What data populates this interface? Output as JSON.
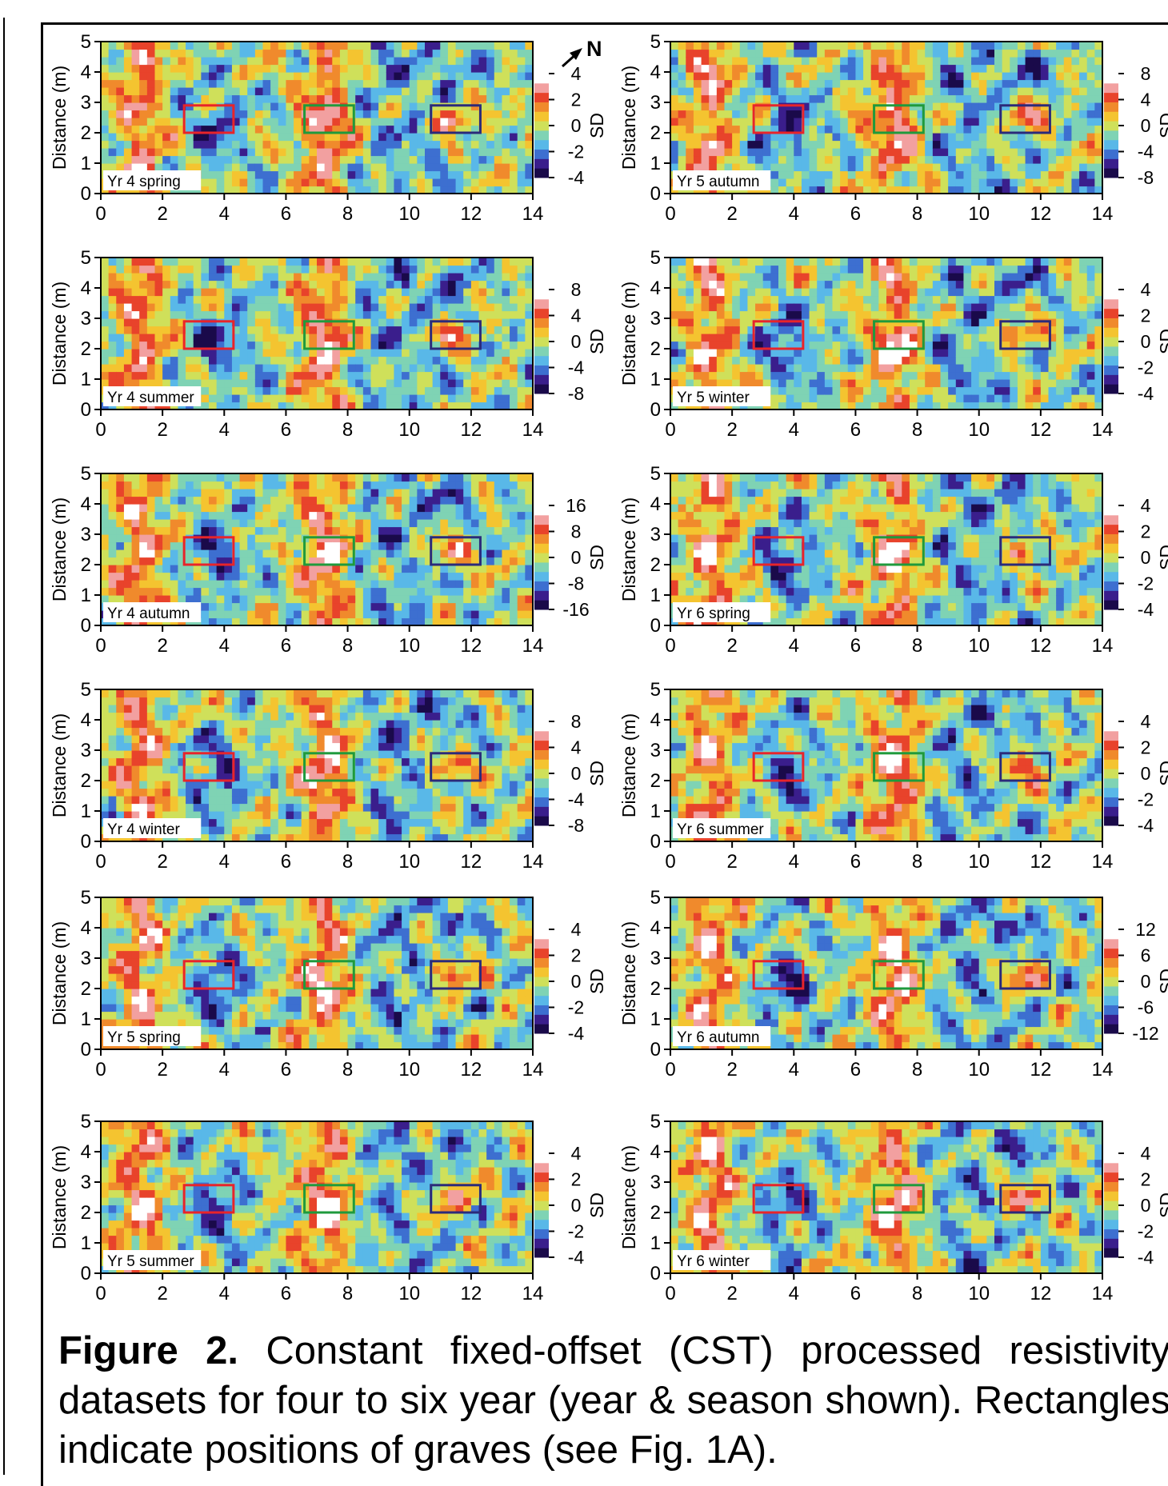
{
  "figure": {
    "caption_label": "Figure 2.",
    "caption_text": "Constant fixed-offset (CST) processed resistivity datasets for four to six year (year & season shown). Rectangles indicate positions of graves (see Fig. 1A).",
    "north_label": "N"
  },
  "colors": {
    "red_grave": "#e8242a",
    "green_grave": "#1f9a3c",
    "purple_grave": "#2b2a7a",
    "colormap": [
      "#1a0a4a",
      "#3a1e8c",
      "#3d6fd0",
      "#59b8e8",
      "#7fd3b4",
      "#cfe05a",
      "#f4c430",
      "#f08a2c",
      "#e8432b",
      "#f2a0a0",
      "#ffffff"
    ]
  },
  "chart_data": [
    {
      "type": "heatmap",
      "label": "Yr 4 spring",
      "xlabel": "",
      "ylabel": "Distance (m)",
      "colorbar_label": "SD",
      "xlim": [
        0,
        14
      ],
      "ylim": [
        0,
        5
      ],
      "xticks": [
        0,
        2,
        4,
        6,
        8,
        10,
        12,
        14
      ],
      "yticks": [
        0,
        1,
        2,
        3,
        4,
        5
      ],
      "colorbar_ticks": [
        4,
        2,
        0,
        -2,
        -4
      ],
      "colorbar_range": [
        -4,
        4
      ],
      "graves": [
        {
          "x": [
            2.7,
            4.3
          ],
          "y": [
            2.0,
            2.9
          ],
          "color": "red"
        },
        {
          "x": [
            6.6,
            8.2
          ],
          "y": [
            2.0,
            2.9
          ],
          "color": "green"
        },
        {
          "x": [
            10.7,
            12.3
          ],
          "y": [
            2.0,
            2.9
          ],
          "color": "purple"
        }
      ]
    },
    {
      "type": "heatmap",
      "label": "Yr 5 autumn",
      "xlabel": "",
      "ylabel": "Distance (m)",
      "colorbar_label": "SD",
      "xlim": [
        0,
        14
      ],
      "ylim": [
        0,
        5
      ],
      "xticks": [
        0,
        2,
        4,
        6,
        8,
        10,
        12,
        14
      ],
      "yticks": [
        0,
        1,
        2,
        3,
        4,
        5
      ],
      "colorbar_ticks": [
        8,
        4,
        0,
        -4,
        -8
      ],
      "colorbar_range": [
        -8,
        8
      ],
      "graves": [
        {
          "x": [
            2.7,
            4.3
          ],
          "y": [
            2.0,
            2.9
          ],
          "color": "red"
        },
        {
          "x": [
            6.6,
            8.2
          ],
          "y": [
            2.0,
            2.9
          ],
          "color": "green"
        },
        {
          "x": [
            10.7,
            12.3
          ],
          "y": [
            2.0,
            2.9
          ],
          "color": "purple"
        }
      ]
    },
    {
      "type": "heatmap",
      "label": "Yr 4 summer",
      "xlabel": "",
      "ylabel": "Distance (m)",
      "colorbar_label": "SD",
      "xlim": [
        0,
        14
      ],
      "ylim": [
        0,
        5
      ],
      "xticks": [
        0,
        2,
        4,
        6,
        8,
        10,
        12,
        14
      ],
      "yticks": [
        0,
        1,
        2,
        3,
        4,
        5
      ],
      "colorbar_ticks": [
        8,
        4,
        0,
        -4,
        -8
      ],
      "colorbar_range": [
        -8,
        8
      ],
      "graves": [
        {
          "x": [
            2.7,
            4.3
          ],
          "y": [
            2.0,
            2.9
          ],
          "color": "red"
        },
        {
          "x": [
            6.6,
            8.2
          ],
          "y": [
            2.0,
            2.9
          ],
          "color": "green"
        },
        {
          "x": [
            10.7,
            12.3
          ],
          "y": [
            2.0,
            2.9
          ],
          "color": "purple"
        }
      ]
    },
    {
      "type": "heatmap",
      "label": "Yr 5 winter",
      "xlabel": "",
      "ylabel": "Distance (m)",
      "colorbar_label": "SD",
      "xlim": [
        0,
        14
      ],
      "ylim": [
        0,
        5
      ],
      "xticks": [
        0,
        2,
        4,
        6,
        8,
        10,
        12,
        14
      ],
      "yticks": [
        0,
        1,
        2,
        3,
        4,
        5
      ],
      "colorbar_ticks": [
        4,
        2,
        0,
        -2,
        -4
      ],
      "colorbar_range": [
        -4,
        4
      ],
      "graves": [
        {
          "x": [
            2.7,
            4.3
          ],
          "y": [
            2.0,
            2.9
          ],
          "color": "red"
        },
        {
          "x": [
            6.6,
            8.2
          ],
          "y": [
            2.0,
            2.9
          ],
          "color": "green"
        },
        {
          "x": [
            10.7,
            12.3
          ],
          "y": [
            2.0,
            2.9
          ],
          "color": "purple"
        }
      ]
    },
    {
      "type": "heatmap",
      "label": "Yr 4 autumn",
      "xlabel": "",
      "ylabel": "Distance (m)",
      "colorbar_label": "SD",
      "xlim": [
        0,
        14
      ],
      "ylim": [
        0,
        5
      ],
      "xticks": [
        0,
        2,
        4,
        6,
        8,
        10,
        12,
        14
      ],
      "yticks": [
        0,
        1,
        2,
        3,
        4,
        5
      ],
      "colorbar_ticks": [
        16,
        8,
        0,
        -8,
        -16
      ],
      "colorbar_range": [
        -16,
        16
      ],
      "graves": [
        {
          "x": [
            2.7,
            4.3
          ],
          "y": [
            2.0,
            2.9
          ],
          "color": "red"
        },
        {
          "x": [
            6.6,
            8.2
          ],
          "y": [
            2.0,
            2.9
          ],
          "color": "green"
        },
        {
          "x": [
            10.7,
            12.3
          ],
          "y": [
            2.0,
            2.9
          ],
          "color": "purple"
        }
      ]
    },
    {
      "type": "heatmap",
      "label": "Yr 6 spring",
      "xlabel": "",
      "ylabel": "Distance (m)",
      "colorbar_label": "SD",
      "xlim": [
        0,
        14
      ],
      "ylim": [
        0,
        5
      ],
      "xticks": [
        0,
        2,
        4,
        6,
        8,
        10,
        12,
        14
      ],
      "yticks": [
        0,
        1,
        2,
        3,
        4,
        5
      ],
      "colorbar_ticks": [
        4,
        2,
        0,
        -2,
        -4
      ],
      "colorbar_range": [
        -4,
        4
      ],
      "graves": [
        {
          "x": [
            2.7,
            4.3
          ],
          "y": [
            2.0,
            2.9
          ],
          "color": "red"
        },
        {
          "x": [
            6.6,
            8.2
          ],
          "y": [
            2.0,
            2.9
          ],
          "color": "green"
        },
        {
          "x": [
            10.7,
            12.3
          ],
          "y": [
            2.0,
            2.9
          ],
          "color": "purple"
        }
      ]
    },
    {
      "type": "heatmap",
      "label": "Yr 4 winter",
      "xlabel": "",
      "ylabel": "Distance (m)",
      "colorbar_label": "SD",
      "xlim": [
        0,
        14
      ],
      "ylim": [
        0,
        5
      ],
      "xticks": [
        0,
        2,
        4,
        6,
        8,
        10,
        12,
        14
      ],
      "yticks": [
        0,
        1,
        2,
        3,
        4,
        5
      ],
      "colorbar_ticks": [
        8,
        4,
        0,
        -4,
        -8
      ],
      "colorbar_range": [
        -8,
        8
      ],
      "graves": [
        {
          "x": [
            2.7,
            4.3
          ],
          "y": [
            2.0,
            2.9
          ],
          "color": "red"
        },
        {
          "x": [
            6.6,
            8.2
          ],
          "y": [
            2.0,
            2.9
          ],
          "color": "green"
        },
        {
          "x": [
            10.7,
            12.3
          ],
          "y": [
            2.0,
            2.9
          ],
          "color": "purple"
        }
      ]
    },
    {
      "type": "heatmap",
      "label": "Yr 6 summer",
      "xlabel": "",
      "ylabel": "Distance (m)",
      "colorbar_label": "SD",
      "xlim": [
        0,
        14
      ],
      "ylim": [
        0,
        5
      ],
      "xticks": [
        0,
        2,
        4,
        6,
        8,
        10,
        12,
        14
      ],
      "yticks": [
        0,
        1,
        2,
        3,
        4,
        5
      ],
      "colorbar_ticks": [
        4,
        2,
        0,
        -2,
        -4
      ],
      "colorbar_range": [
        -4,
        4
      ],
      "graves": [
        {
          "x": [
            2.7,
            4.3
          ],
          "y": [
            2.0,
            2.9
          ],
          "color": "red"
        },
        {
          "x": [
            6.6,
            8.2
          ],
          "y": [
            2.0,
            2.9
          ],
          "color": "green"
        },
        {
          "x": [
            10.7,
            12.3
          ],
          "y": [
            2.0,
            2.9
          ],
          "color": "purple"
        }
      ]
    },
    {
      "type": "heatmap",
      "label": "Yr 5 spring",
      "xlabel": "",
      "ylabel": "Distance (m)",
      "colorbar_label": "SD",
      "xlim": [
        0,
        14
      ],
      "ylim": [
        0,
        5
      ],
      "xticks": [
        0,
        2,
        4,
        6,
        8,
        10,
        12,
        14
      ],
      "yticks": [
        0,
        1,
        2,
        3,
        4,
        5
      ],
      "colorbar_ticks": [
        4,
        2,
        0,
        -2,
        -4
      ],
      "colorbar_range": [
        -4,
        4
      ],
      "graves": [
        {
          "x": [
            2.7,
            4.3
          ],
          "y": [
            2.0,
            2.9
          ],
          "color": "red"
        },
        {
          "x": [
            6.6,
            8.2
          ],
          "y": [
            2.0,
            2.9
          ],
          "color": "green"
        },
        {
          "x": [
            10.7,
            12.3
          ],
          "y": [
            2.0,
            2.9
          ],
          "color": "purple"
        }
      ]
    },
    {
      "type": "heatmap",
      "label": "Yr 6 autumn",
      "xlabel": "",
      "ylabel": "Distance (m)",
      "colorbar_label": "SD",
      "xlim": [
        0,
        14
      ],
      "ylim": [
        0,
        5
      ],
      "xticks": [
        0,
        2,
        4,
        6,
        8,
        10,
        12,
        14
      ],
      "yticks": [
        0,
        1,
        2,
        3,
        4,
        5
      ],
      "colorbar_ticks": [
        12,
        6,
        0,
        -6,
        -12
      ],
      "colorbar_range": [
        -12,
        12
      ],
      "graves": [
        {
          "x": [
            2.7,
            4.3
          ],
          "y": [
            2.0,
            2.9
          ],
          "color": "red"
        },
        {
          "x": [
            6.6,
            8.2
          ],
          "y": [
            2.0,
            2.9
          ],
          "color": "green"
        },
        {
          "x": [
            10.7,
            12.3
          ],
          "y": [
            2.0,
            2.9
          ],
          "color": "purple"
        }
      ]
    },
    {
      "type": "heatmap",
      "label": "Yr 5 summer",
      "xlabel": "",
      "ylabel": "Distance (m)",
      "colorbar_label": "SD",
      "xlim": [
        0,
        14
      ],
      "ylim": [
        0,
        5
      ],
      "xticks": [
        0,
        2,
        4,
        6,
        8,
        10,
        12,
        14
      ],
      "yticks": [
        0,
        1,
        2,
        3,
        4,
        5
      ],
      "colorbar_ticks": [
        4,
        2,
        0,
        -2,
        -4
      ],
      "colorbar_range": [
        -4,
        4
      ],
      "graves": [
        {
          "x": [
            2.7,
            4.3
          ],
          "y": [
            2.0,
            2.9
          ],
          "color": "red"
        },
        {
          "x": [
            6.6,
            8.2
          ],
          "y": [
            2.0,
            2.9
          ],
          "color": "green"
        },
        {
          "x": [
            10.7,
            12.3
          ],
          "y": [
            2.0,
            2.9
          ],
          "color": "purple"
        }
      ]
    },
    {
      "type": "heatmap",
      "label": "Yr 6 winter",
      "xlabel": "",
      "ylabel": "Distance (m)",
      "colorbar_label": "SD",
      "xlim": [
        0,
        14
      ],
      "ylim": [
        0,
        5
      ],
      "xticks": [
        0,
        2,
        4,
        6,
        8,
        10,
        12,
        14
      ],
      "yticks": [
        0,
        1,
        2,
        3,
        4,
        5
      ],
      "colorbar_ticks": [
        4,
        2,
        0,
        -2,
        -4
      ],
      "colorbar_range": [
        -4,
        4
      ],
      "graves": [
        {
          "x": [
            2.7,
            4.3
          ],
          "y": [
            2.0,
            2.9
          ],
          "color": "red"
        },
        {
          "x": [
            6.6,
            8.2
          ],
          "y": [
            2.0,
            2.9
          ],
          "color": "green"
        },
        {
          "x": [
            10.7,
            12.3
          ],
          "y": [
            2.0,
            2.9
          ],
          "color": "purple"
        }
      ]
    }
  ]
}
